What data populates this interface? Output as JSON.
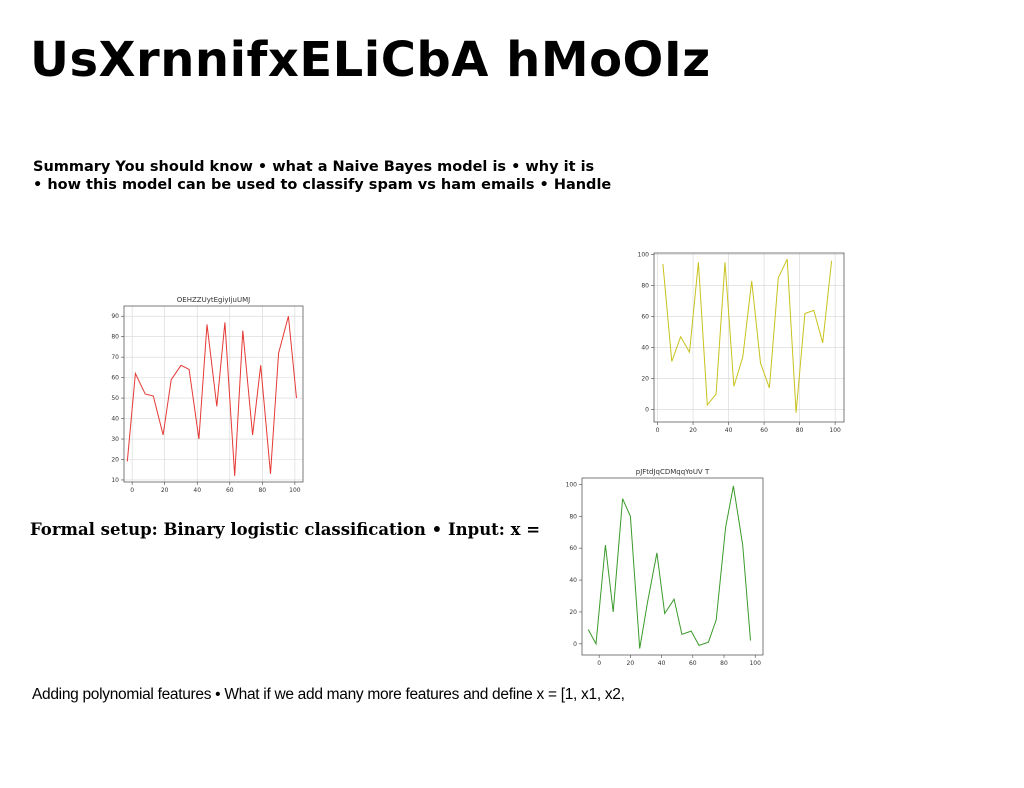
{
  "slide": {
    "title": "UsXrnnifxELiCbA hMoOIz",
    "summary_line1": "Summary You should know • what a Naive Bayes model is • why it is",
    "summary_line2": "• how this model can be used to classify spam vs ham emails • Handle",
    "formal_setup": "Formal setup: Binary logistic classification • Input: x =",
    "polynomial": "Adding polynomial features • What if we add many more features and define x = [1, x1, x2,"
  },
  "chart_data": [
    {
      "type": "line",
      "title": "OEHZZUytEgiyIjuUMJ",
      "color": "#e53935",
      "x": [
        -3,
        2,
        8,
        13,
        19,
        24,
        30,
        35,
        41,
        46,
        52,
        57,
        63,
        68,
        74,
        79,
        85,
        90,
        96,
        101
      ],
      "y": [
        19,
        62,
        52,
        51,
        32,
        59,
        66,
        64,
        30,
        86,
        46,
        87,
        12,
        83,
        32,
        66,
        13,
        72,
        90,
        50
      ],
      "xlim": [
        -5,
        105
      ],
      "ylim": [
        9,
        95
      ],
      "xticks": [
        0,
        20,
        40,
        60,
        80,
        100
      ],
      "yticks": [
        10,
        20,
        30,
        40,
        50,
        60,
        70,
        80,
        90
      ],
      "grid": true
    },
    {
      "type": "line",
      "title": "",
      "color": "#c8c21e",
      "x": [
        3,
        8,
        13,
        18,
        23,
        28,
        33,
        38,
        43,
        48,
        53,
        58,
        63,
        68,
        73,
        78,
        83,
        88,
        93,
        98
      ],
      "y": [
        94,
        31,
        47,
        37,
        95,
        3,
        10,
        95,
        15,
        34,
        83,
        30,
        14,
        85,
        97,
        -2,
        62,
        64,
        43,
        96
      ],
      "xlim": [
        -2,
        105
      ],
      "ylim": [
        -8,
        101
      ],
      "xticks": [
        0,
        20,
        40,
        60,
        80,
        100
      ],
      "yticks": [
        0,
        20,
        40,
        60,
        80,
        100
      ],
      "grid": true
    },
    {
      "type": "line",
      "title": "pJFtdJqCDMqqYoUV T",
      "color": "#3a9a2a",
      "x": [
        -7,
        -2,
        4,
        9,
        15,
        20,
        26,
        31,
        37,
        42,
        48,
        53,
        59,
        64,
        70,
        75,
        81,
        86,
        92,
        97
      ],
      "y": [
        9,
        0,
        62,
        20,
        91,
        80,
        -3,
        26,
        57,
        19,
        28,
        6,
        8,
        -1,
        1,
        15,
        73,
        99,
        62,
        2
      ],
      "xlim": [
        -11,
        105
      ],
      "ylim": [
        -7,
        104
      ],
      "xticks": [
        0,
        20,
        40,
        60,
        80,
        100
      ],
      "yticks": [
        0,
        20,
        40,
        60,
        80,
        100
      ],
      "grid": false
    }
  ]
}
